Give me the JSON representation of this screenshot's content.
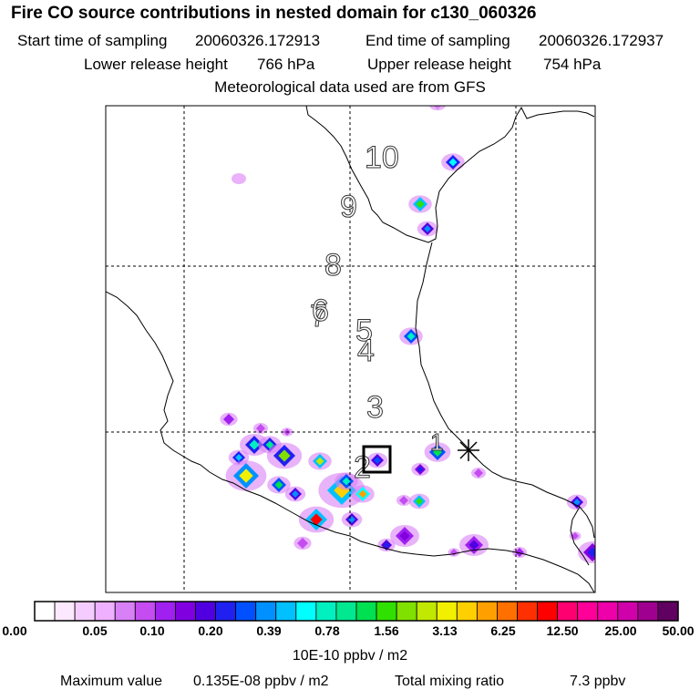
{
  "header": {
    "title": "Fire CO source contributions in nested domain for c130_060326",
    "start_time_label": "Start time of sampling",
    "start_time": "20060326.172913",
    "end_time_label": "End time of sampling",
    "end_time": "20060326.172937",
    "lower_height_label": "Lower release height",
    "lower_height": "766 hPa",
    "upper_height_label": "Upper release height",
    "upper_height": "754 hPa",
    "met_note": "Meteorological data used are from GFS"
  },
  "map": {
    "trajectory_labels": [
      "10",
      "9",
      "8",
      "7",
      "6",
      "5",
      "4",
      "3",
      "2",
      "1"
    ],
    "colors": {
      "low": "#f0c0ff",
      "mid": "#00ffff",
      "high": "#ff0000",
      "coast": "#000000"
    }
  },
  "colorbar": {
    "labels": [
      "0.00",
      "0.05",
      "0.10",
      "0.20",
      "0.39",
      "0.78",
      "1.56",
      "3.13",
      "6.25",
      "12.50",
      "25.00",
      "50.00"
    ],
    "colors": [
      "#ffffff",
      "#fce8ff",
      "#f5ccff",
      "#eeb0ff",
      "#d880f5",
      "#c44cf0",
      "#a020ef",
      "#8000e0",
      "#5000e0",
      "#2020f0",
      "#0050ff",
      "#0090ff",
      "#00c0ff",
      "#00ffff",
      "#00f0c0",
      "#00e890",
      "#00e050",
      "#30e000",
      "#80e000",
      "#c0e800",
      "#f0f000",
      "#ffd000",
      "#ffa000",
      "#ff7000",
      "#ff3000",
      "#ff0000",
      "#ff0070",
      "#ff0099",
      "#ee00aa",
      "#d000aa",
      "#a00090",
      "#600060"
    ],
    "units": "10E-10 ppbv / m2"
  },
  "footer": {
    "max_label": "Maximum value",
    "max_value": "0.135E-08 ppbv / m2",
    "total_label": "Total mixing ratio",
    "total_value": "7.3 ppbv"
  }
}
